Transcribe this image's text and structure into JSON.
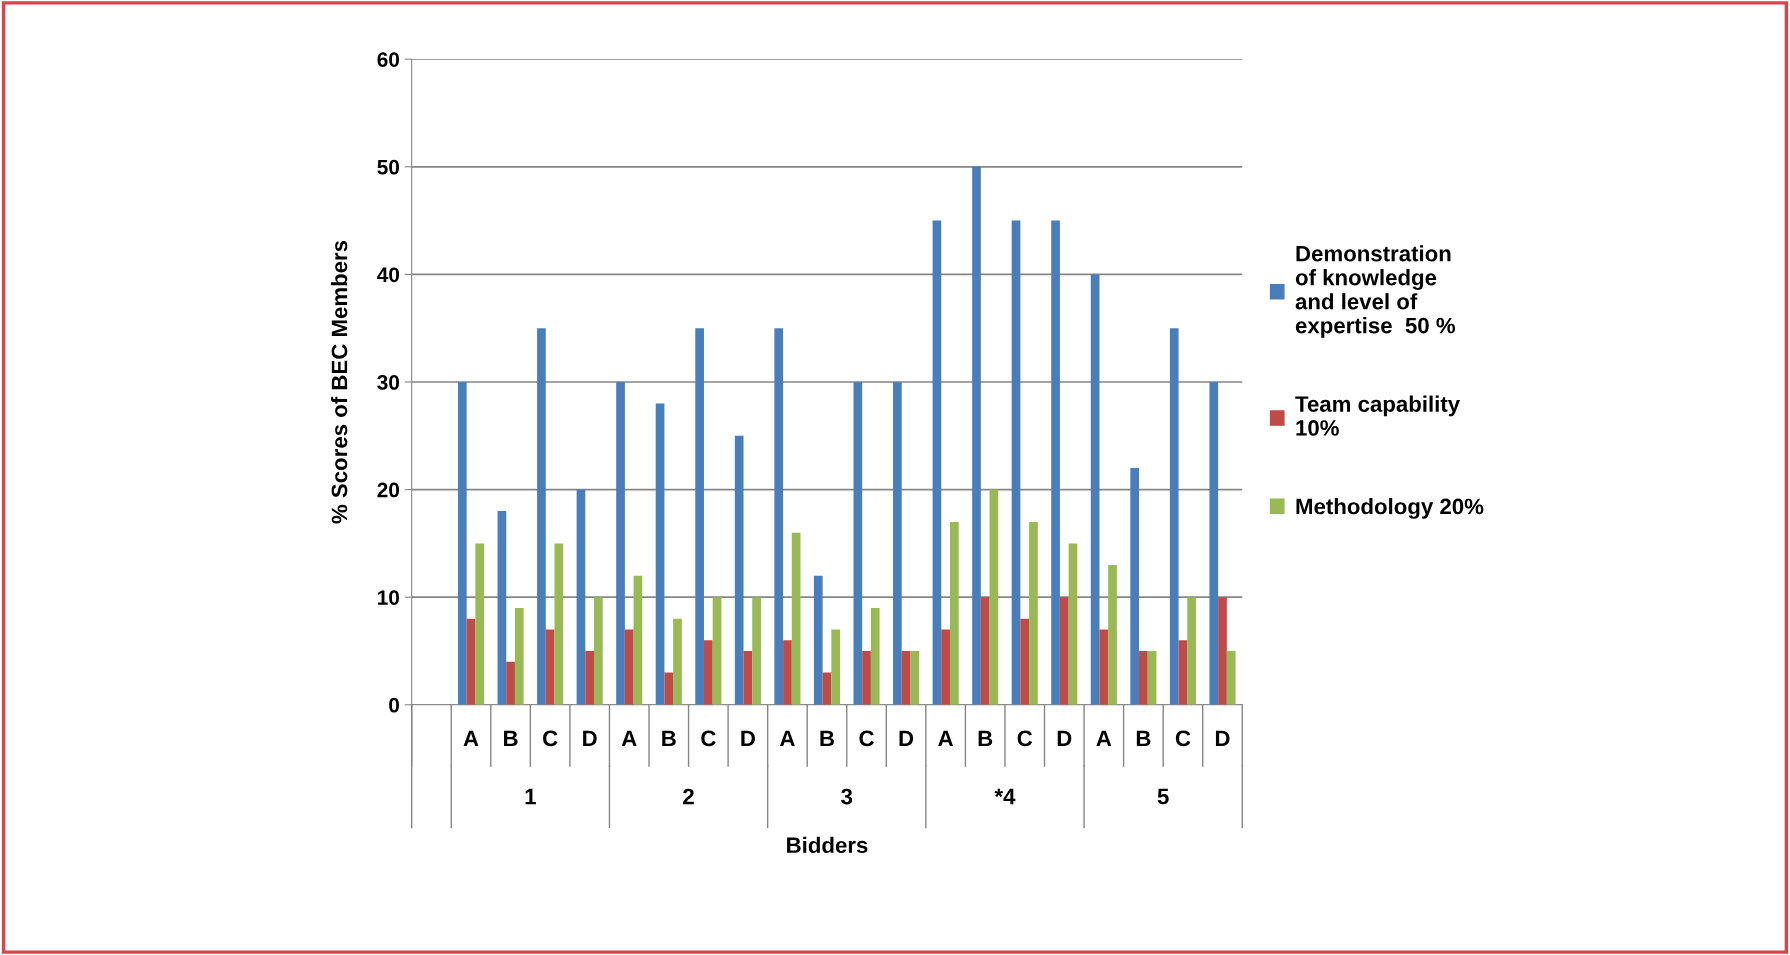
{
  "chart_data": {
    "type": "bar",
    "xlabel": "Bidders",
    "ylabel": "% Scores of BEC Members",
    "categories": [
      null,
      "A",
      "B",
      "C",
      "D",
      "A",
      "B",
      "C",
      "D",
      "A",
      "B",
      "C",
      "D",
      "A",
      "B",
      "C",
      "D",
      "A",
      "B",
      "C",
      "D"
    ],
    "annotations": [
      "1",
      "2",
      "3",
      "*4",
      "5"
    ],
    "series": [
      {
        "name": "Demonstration of knowledge and level of expertise  50 %",
        "color": "#4a7ebb",
        "values": [
          null,
          30,
          18,
          35,
          20,
          30,
          28,
          35,
          25,
          35,
          12,
          30,
          30,
          45,
          50,
          45,
          45,
          40,
          22,
          35,
          30
        ]
      },
      {
        "name": "Team capability 10%",
        "color": "#be4b48",
        "values": [
          null,
          8,
          4,
          7,
          5,
          7,
          3,
          6,
          5,
          6,
          3,
          5,
          5,
          7,
          10,
          8,
          10,
          7,
          5,
          6,
          10
        ]
      },
      {
        "name": "Methodology 20%",
        "color": "#98b954",
        "values": [
          null,
          15,
          9,
          15,
          10,
          12,
          8,
          10,
          10,
          16,
          7,
          9,
          5,
          17,
          20,
          17,
          15,
          13,
          5,
          10,
          5
        ]
      }
    ],
    "ylim": [
      0,
      60
    ],
    "yticks": [
      0,
      10,
      20,
      30,
      40,
      50,
      60
    ],
    "grid": "y",
    "legend": "right"
  }
}
